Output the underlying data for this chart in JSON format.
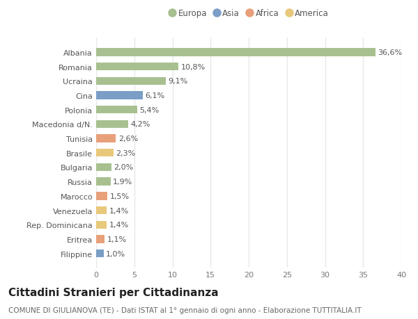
{
  "categories": [
    "Filippine",
    "Eritrea",
    "Rep. Dominicana",
    "Venezuela",
    "Marocco",
    "Russia",
    "Bulgaria",
    "Brasile",
    "Tunisia",
    "Macedonia d/N.",
    "Polonia",
    "Cina",
    "Ucraina",
    "Romania",
    "Albania"
  ],
  "values": [
    1.0,
    1.1,
    1.4,
    1.4,
    1.5,
    1.9,
    2.0,
    2.3,
    2.6,
    4.2,
    5.4,
    6.1,
    9.1,
    10.8,
    36.6
  ],
  "labels": [
    "1,0%",
    "1,1%",
    "1,4%",
    "1,4%",
    "1,5%",
    "1,9%",
    "2,0%",
    "2,3%",
    "2,6%",
    "4,2%",
    "5,4%",
    "6,1%",
    "9,1%",
    "10,8%",
    "36,6%"
  ],
  "colors": [
    "#7b9ec7",
    "#e8a07a",
    "#e8c87a",
    "#e8c87a",
    "#e8a07a",
    "#a8c090",
    "#a8c090",
    "#e8c87a",
    "#e8a07a",
    "#a8c090",
    "#a8c090",
    "#7b9ec7",
    "#a8c090",
    "#a8c090",
    "#a8c090"
  ],
  "legend": [
    {
      "label": "Europa",
      "color": "#a8c090"
    },
    {
      "label": "Asia",
      "color": "#7b9ec7"
    },
    {
      "label": "Africa",
      "color": "#e8a07a"
    },
    {
      "label": "America",
      "color": "#e8c87a"
    }
  ],
  "xlim": [
    0,
    40
  ],
  "xticks": [
    0,
    5,
    10,
    15,
    20,
    25,
    30,
    35,
    40
  ],
  "title": "Cittadini Stranieri per Cittadinanza",
  "subtitle": "COMUNE DI GIULIANOVA (TE) - Dati ISTAT al 1° gennaio di ogni anno - Elaborazione TUTTITALIA.IT",
  "bg_color": "#ffffff",
  "grid_color": "#e8e8e8",
  "bar_height": 0.55,
  "title_fontsize": 11,
  "subtitle_fontsize": 7.5,
  "label_fontsize": 8,
  "tick_fontsize": 8,
  "legend_fontsize": 8.5
}
